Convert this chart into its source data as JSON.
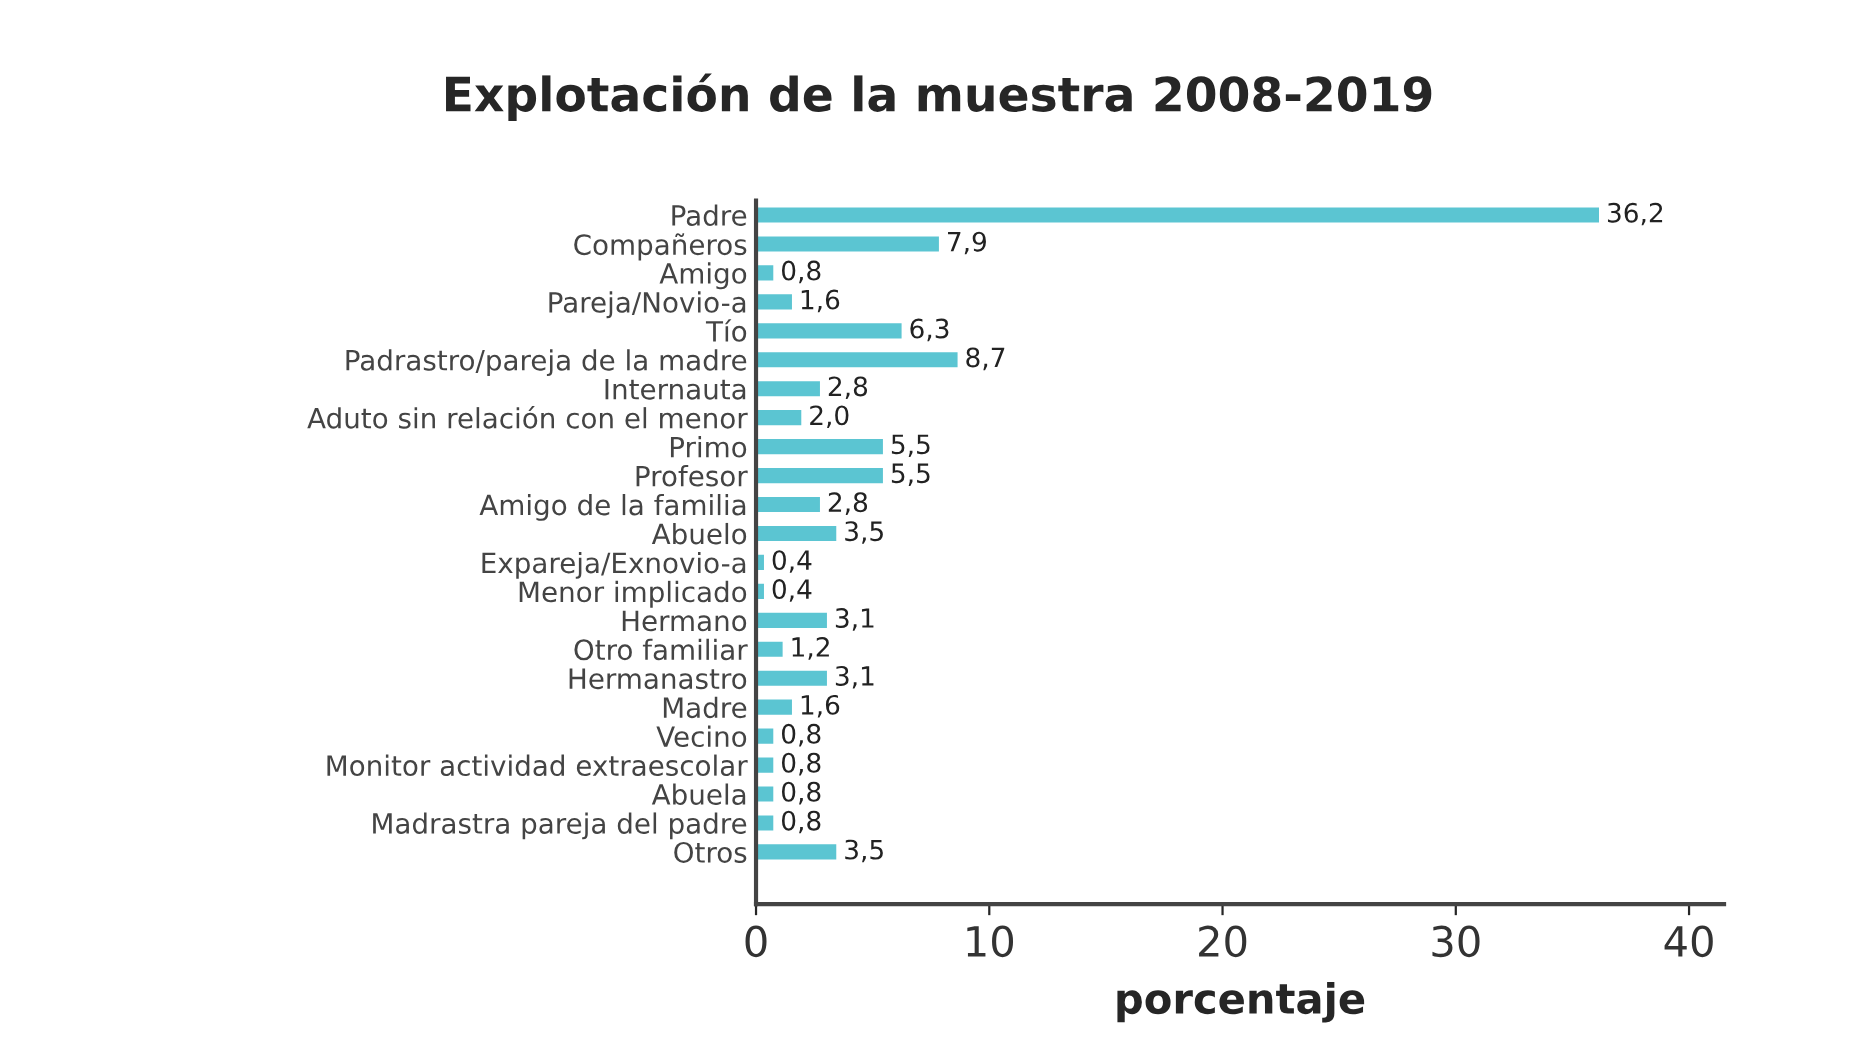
{
  "chart_data": {
    "type": "bar",
    "orientation": "horizontal",
    "title": "Explotación de la muestra 2008-2019",
    "xlabel": "porcentaje",
    "categories": [
      "Padre",
      "Compañeros",
      "Amigo",
      "Pareja/Novio-a",
      "Tío",
      "Padrastro/pareja de la madre",
      "Internauta",
      "Aduto sin relación con el menor",
      "Primo",
      "Profesor",
      "Amigo de la familia",
      "Abuelo",
      "Expareja/Exnovio-a",
      "Menor implicado",
      "Hermano",
      "Otro familiar",
      "Hermanastro",
      "Madre",
      "Vecino",
      "Monitor actividad extraescolar",
      "Abuela",
      "Madrastra pareja del padre",
      "Otros"
    ],
    "values": [
      36.2,
      7.9,
      0.8,
      1.6,
      6.3,
      8.7,
      2.8,
      2.0,
      5.5,
      5.5,
      2.8,
      3.5,
      0.4,
      0.4,
      3.1,
      1.2,
      3.1,
      1.6,
      0.8,
      0.8,
      0.8,
      0.8,
      3.5
    ],
    "value_labels": [
      "36,2",
      "7,9",
      "0,8",
      "1,6",
      "6,3",
      "8,7",
      "2,8",
      "2,0",
      "5,5",
      "5,5",
      "2,8",
      "3,5",
      "0,4",
      "0,4",
      "3,1",
      "1,2",
      "3,1",
      "1,6",
      "0,8",
      "0,8",
      "0,8",
      "0,8",
      "3,5"
    ],
    "color": "#5bc5d2",
    "xlim": [
      0,
      41.5
    ],
    "xticks": [
      0,
      10,
      20,
      30,
      40
    ],
    "grid": false,
    "legend": false
  }
}
